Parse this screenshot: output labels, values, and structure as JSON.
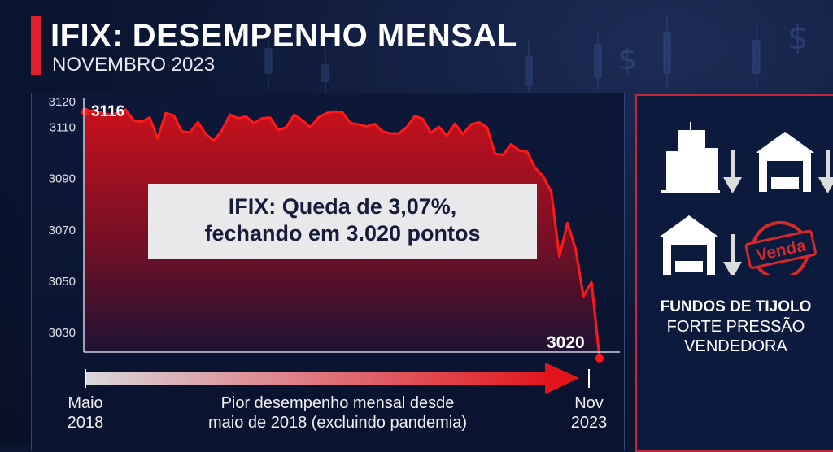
{
  "header": {
    "title": "IFIX: DESEMPENHO MENSAL",
    "subtitle": "NOVEMBRO 2023"
  },
  "annotation": {
    "line1": "IFIX: Queda de 3,07%,",
    "line2": "fechando em 3.020 pontos"
  },
  "timeline": {
    "start_month": "Maio",
    "start_year": "2018",
    "end_month": "Nov",
    "end_year": "2023",
    "caption_line1": "Pior desempenho mensal desde",
    "caption_line2": "maio de 2018 (excluindo pandemia)"
  },
  "side": {
    "stamp": "Venda",
    "heading": "FUNDOS DE TIJOLO",
    "line1": "FORTE PRESSÃO",
    "line2": "VENDEDORA"
  },
  "colors": {
    "line": "#ff1a1a",
    "accent": "#e0202c",
    "background": "#0b1633"
  },
  "chart_data": {
    "type": "area",
    "title": "IFIX: DESEMPENHO MENSAL",
    "xlabel": "",
    "ylabel": "",
    "ylim": [
      3025,
      3120
    ],
    "yticks": [
      "3120",
      "3110",
      "3090",
      "3070",
      "3050",
      "3030"
    ],
    "grid": false,
    "start_label": "3116",
    "end_label": "3020",
    "values": [
      3116,
      3116.6,
      3115.7,
      3114.9,
      3115.5,
      3116.9,
      3112.7,
      3112.2,
      3113.8,
      3105.6,
      3115.5,
      3114.6,
      3108.4,
      3108,
      3112,
      3107.3,
      3104.7,
      3108.9,
      3114.9,
      3113.5,
      3114.2,
      3111.6,
      3113.5,
      3113.8,
      3108.9,
      3110,
      3114.9,
      3112.7,
      3110,
      3113.8,
      3115.5,
      3116.2,
      3115.8,
      3111.6,
      3111.1,
      3110.3,
      3111.3,
      3108.4,
      3107.6,
      3107.6,
      3110,
      3114.4,
      3113.3,
      3107.8,
      3110.2,
      3106.7,
      3111.4,
      3107.3,
      3111.1,
      3112,
      3110,
      3099.6,
      3099.3,
      3103.4,
      3101,
      3100.4,
      3094.1,
      3090.8,
      3084.8,
      3059.6,
      3072.7,
      3062.9,
      3044.2,
      3049.7,
      3020
    ]
  }
}
